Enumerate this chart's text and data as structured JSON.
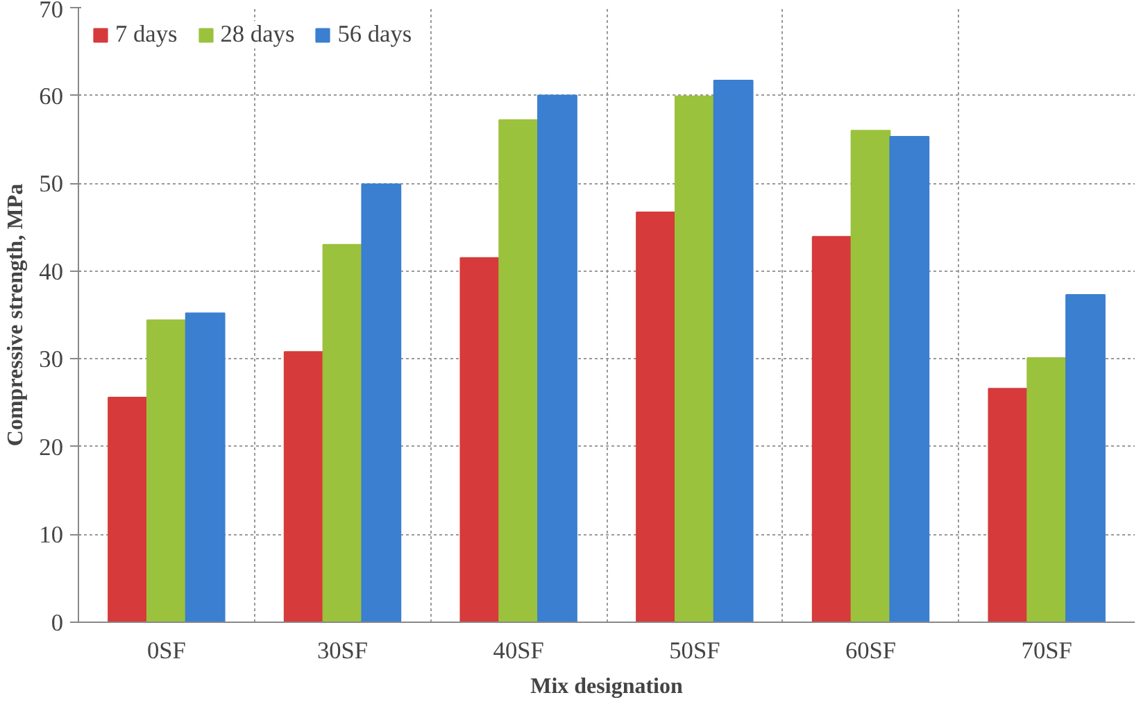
{
  "chart_data": {
    "type": "bar",
    "xlabel": "Mix designation",
    "ylabel": "Compressive strength, MPa",
    "categories": [
      "0SF",
      "30SF",
      "40SF",
      "50SF",
      "60SF",
      "70SF"
    ],
    "series": [
      {
        "name": "7 days",
        "color": "#d63a3a",
        "values": [
          25.6,
          30.8,
          41.5,
          46.7,
          43.9,
          26.6
        ]
      },
      {
        "name": "28 days",
        "color": "#9bc23c",
        "values": [
          34.4,
          43.0,
          57.2,
          59.9,
          56.0,
          30.1
        ]
      },
      {
        "name": "56 days",
        "color": "#3a7fd0",
        "values": [
          35.2,
          49.9,
          60.0,
          61.7,
          55.3,
          37.3
        ]
      }
    ],
    "ylim": [
      0,
      70
    ],
    "yticks": [
      0,
      10,
      20,
      30,
      40,
      50,
      60,
      70
    ],
    "grid": true,
    "legend": "top left"
  }
}
